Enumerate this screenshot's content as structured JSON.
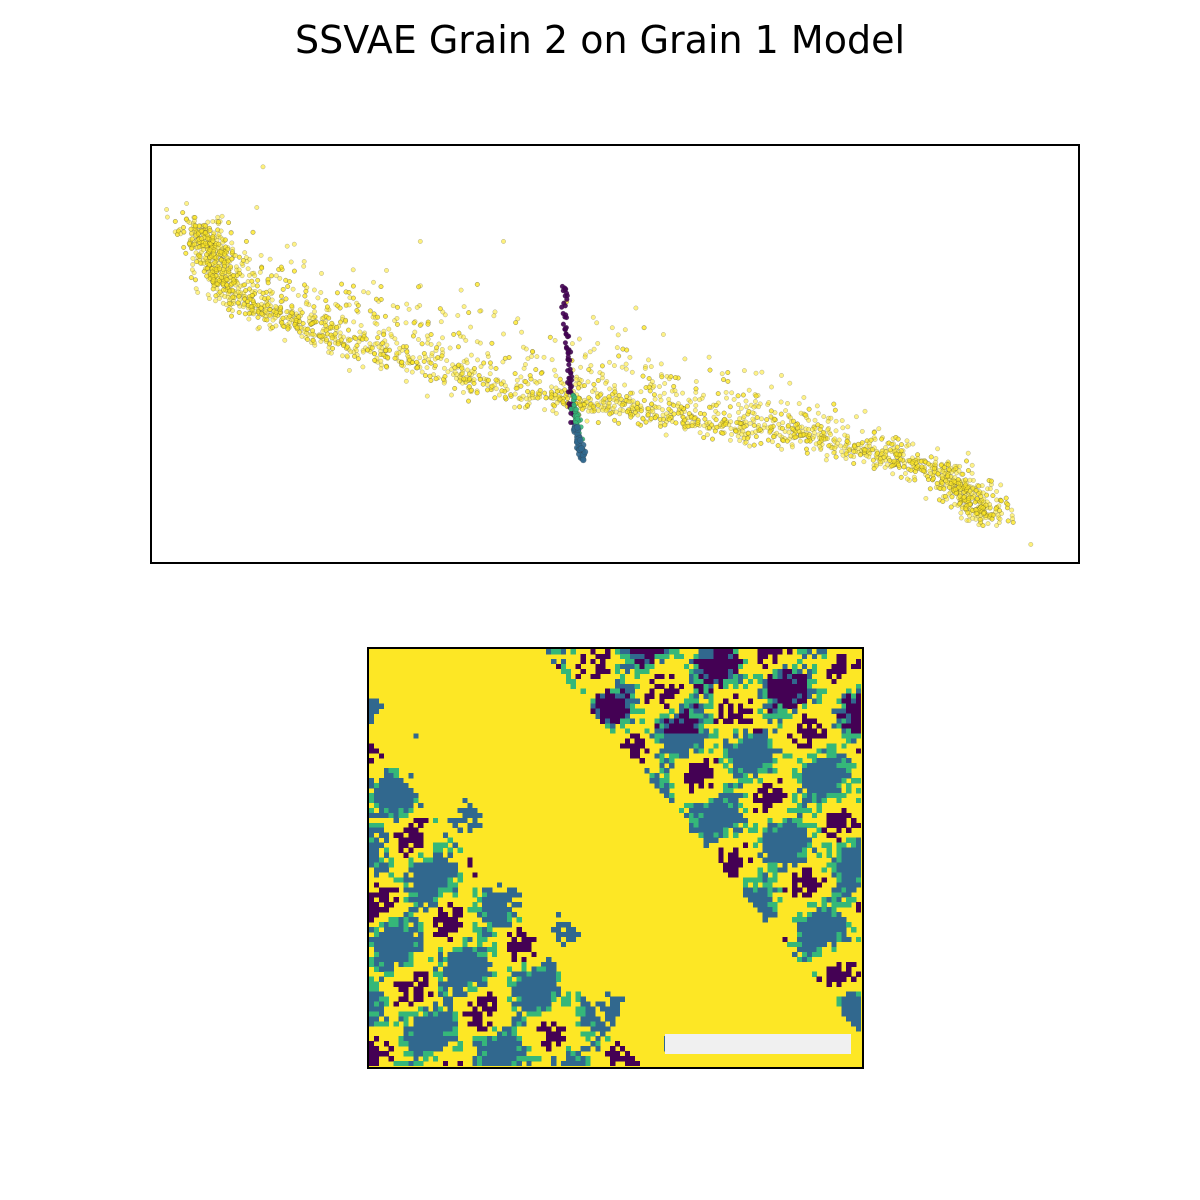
{
  "figure": {
    "title": "SSVAE Grain 2 on Grain 1 Model"
  },
  "colors": {
    "class_0": "#440154",
    "class_1": "#31688e",
    "class_2": "#35b779",
    "class_3": "#fde725",
    "scale_bar": "#f0f0f0"
  },
  "chart_data": [
    {
      "type": "scatter",
      "title": "",
      "xlabel": "",
      "ylabel": "",
      "axes_ticks": false,
      "xlim": [
        0,
        100
      ],
      "ylim": [
        0,
        100
      ],
      "grid": false,
      "legend": "none",
      "series": [
        {
          "class": 3,
          "color": "#fde725",
          "description_of_shape": "dense arc from upper-left curving to lower-right",
          "curve": [
            [
              5,
              80
            ],
            [
              8,
              64
            ],
            [
              20,
              53
            ],
            [
              40,
              40
            ],
            [
              55,
              35
            ],
            [
              70,
              30
            ],
            [
              85,
              21
            ],
            [
              91,
              10
            ]
          ],
          "count": 3200,
          "outliers": [
            [
              12,
              95
            ],
            [
              29,
              77
            ],
            [
              38,
              77
            ],
            [
              95,
              4
            ]
          ]
        },
        {
          "class": 0,
          "color": "#440154",
          "description_of_shape": "near-vertical streak",
          "segment": [
            [
              44.5,
              67
            ],
            [
              45.5,
              33
            ]
          ],
          "count": 70
        },
        {
          "class": 2,
          "color": "#35b779",
          "description_of_shape": "short streak at lower end",
          "segment": [
            [
              45.5,
              40
            ],
            [
              46.3,
              30
            ]
          ],
          "count": 35
        },
        {
          "class": 1,
          "color": "#31688e",
          "description_of_shape": "tight cluster at bottom of streak",
          "segment": [
            [
              45.8,
              32
            ],
            [
              46.5,
              25
            ]
          ],
          "count": 40
        }
      ]
    },
    {
      "type": "heatmap",
      "title": "",
      "axes_ticks": false,
      "grid_size": [
        100,
        84
      ],
      "classes": [
        0,
        1,
        2,
        3
      ],
      "background_class": 3,
      "scale_bar": true
    }
  ]
}
